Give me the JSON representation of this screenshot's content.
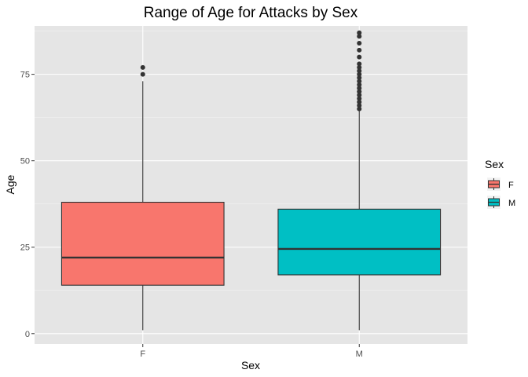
{
  "chart_data": {
    "type": "boxplot",
    "title": "Range of Age for Attacks by Sex",
    "xlabel": "Sex",
    "ylabel": "Age",
    "ylim": [
      -3,
      89
    ],
    "y_ticks": [
      0,
      25,
      50,
      75
    ],
    "grid": true,
    "legend_placement": "right",
    "legend": {
      "title": "Sex",
      "entries": [
        "F",
        "M"
      ]
    },
    "categories": [
      "F",
      "M"
    ],
    "series": [
      {
        "name": "F",
        "color": "#F8766D",
        "min": 1,
        "q1": 14,
        "median": 22,
        "q3": 38,
        "max": 73,
        "outliers": [
          75,
          77
        ]
      },
      {
        "name": "M",
        "color": "#00BFC4",
        "min": 1,
        "q1": 17,
        "median": 24.5,
        "q3": 36,
        "max": 65,
        "outliers": [
          65,
          66,
          67,
          68,
          69,
          70,
          71,
          72,
          73,
          74,
          75,
          76,
          77,
          78,
          80,
          82,
          84,
          86,
          87
        ]
      }
    ]
  },
  "colors": {
    "panel_bg": "#E5E5E5",
    "grid_major": "#FFFFFF",
    "outline": "#333333",
    "F": "#F8766D",
    "M": "#00BFC4"
  }
}
